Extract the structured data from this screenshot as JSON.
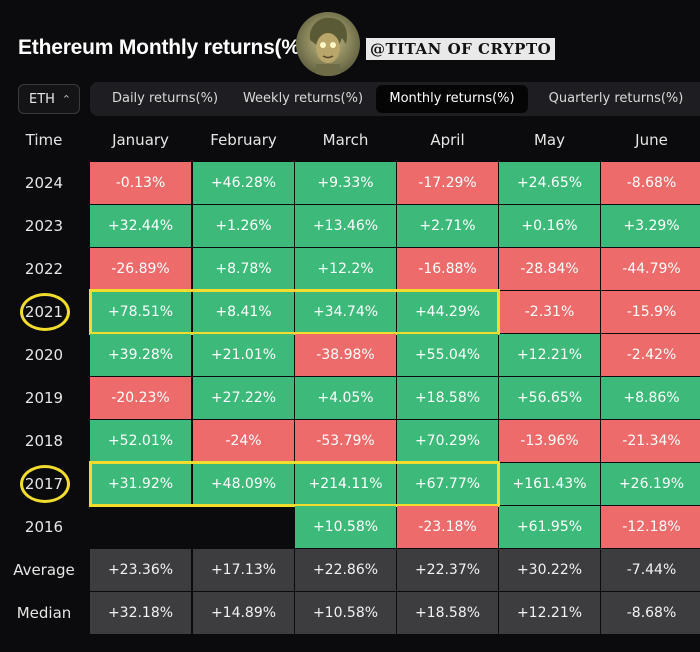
{
  "header": {
    "title": "Ethereum Monthly returns(%)",
    "watermark": "@TITAN OF CRYPTO"
  },
  "toolbar": {
    "asset": "ETH",
    "tabs": [
      {
        "label": "Daily returns(%)",
        "active": false
      },
      {
        "label": "Weekly returns(%)",
        "active": false
      },
      {
        "label": "Monthly returns(%)",
        "active": true
      },
      {
        "label": "Quarterly returns(%)",
        "active": false
      }
    ]
  },
  "table": {
    "corner": "Time",
    "months": [
      "January",
      "February",
      "March",
      "April",
      "May",
      "June"
    ],
    "rows": [
      {
        "label": "2024",
        "values": [
          "-0.13%",
          "+46.28%",
          "+9.33%",
          "-17.29%",
          "+24.65%",
          "-8.68%"
        ]
      },
      {
        "label": "2023",
        "values": [
          "+32.44%",
          "+1.26%",
          "+13.46%",
          "+2.71%",
          "+0.16%",
          "+3.29%"
        ]
      },
      {
        "label": "2022",
        "values": [
          "-26.89%",
          "+8.78%",
          "+12.2%",
          "-16.88%",
          "-28.84%",
          "-44.79%"
        ]
      },
      {
        "label": "2021",
        "values": [
          "+78.51%",
          "+8.41%",
          "+34.74%",
          "+44.29%",
          "-2.31%",
          "-15.9%"
        ]
      },
      {
        "label": "2020",
        "values": [
          "+39.28%",
          "+21.01%",
          "-38.98%",
          "+55.04%",
          "+12.21%",
          "-2.42%"
        ]
      },
      {
        "label": "2019",
        "values": [
          "-20.23%",
          "+27.22%",
          "+4.05%",
          "+18.58%",
          "+56.65%",
          "+8.86%"
        ]
      },
      {
        "label": "2018",
        "values": [
          "+52.01%",
          "-24%",
          "-53.79%",
          "+70.29%",
          "-13.96%",
          "-21.34%"
        ]
      },
      {
        "label": "2017",
        "values": [
          "+31.92%",
          "+48.09%",
          "+214.11%",
          "+67.77%",
          "+161.43%",
          "+26.19%"
        ]
      },
      {
        "label": "2016",
        "values": [
          "",
          "",
          "+10.58%",
          "-23.18%",
          "+61.95%",
          "-12.18%"
        ]
      }
    ],
    "summary": [
      {
        "label": "Average",
        "values": [
          "+23.36%",
          "+17.13%",
          "+22.86%",
          "+22.37%",
          "+30.22%",
          "-7.44%"
        ]
      },
      {
        "label": "Median",
        "values": [
          "+32.18%",
          "+14.89%",
          "+10.58%",
          "+18.58%",
          "+12.21%",
          "-8.68%"
        ]
      }
    ],
    "highlighted_years": [
      "2021",
      "2017"
    ]
  },
  "colors": {
    "positive": "#3dba7a",
    "negative": "#ee6b6b",
    "summary": "#3d3d40",
    "highlight": "#f2dc2e"
  }
}
